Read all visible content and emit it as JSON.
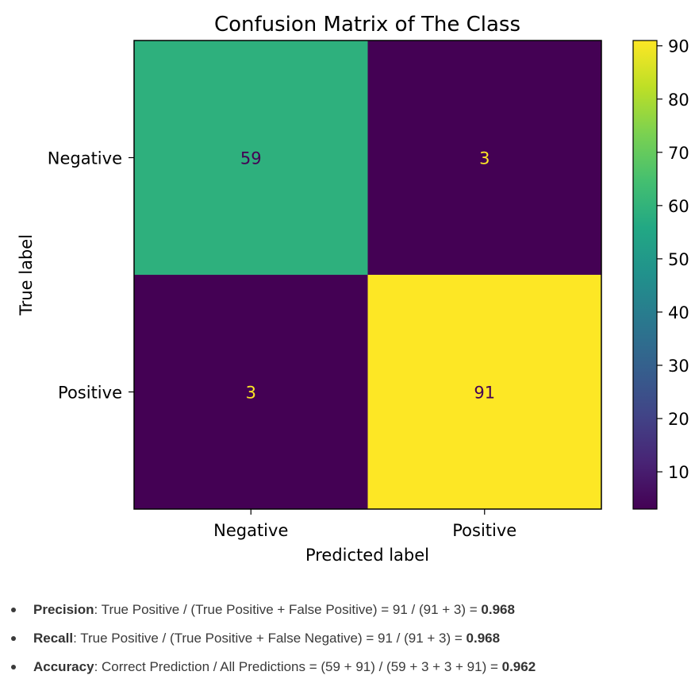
{
  "chart_data": {
    "type": "heatmap",
    "title": "Confusion Matrix of The Class",
    "xlabel": "Predicted label",
    "ylabel": "True label",
    "x_categories": [
      "Negative",
      "Positive"
    ],
    "y_categories": [
      "Negative",
      "Positive"
    ],
    "values": [
      [
        59,
        3
      ],
      [
        3,
        91
      ]
    ],
    "colormap": "viridis",
    "colorbar": {
      "range": [
        3,
        91
      ],
      "ticks": [
        10,
        20,
        30,
        40,
        50,
        60,
        70,
        80,
        90
      ]
    }
  },
  "metrics": [
    {
      "name": "Precision",
      "formula": ": True Positive / (True Positive + False Positive) = 91 / (91 + 3) = ",
      "result": "0.968"
    },
    {
      "name": "Recall",
      "formula": ": True Positive / (True Positive + False Negative) = 91 / (91 + 3) = ",
      "result": "0.968"
    },
    {
      "name": "Accuracy",
      "formula": ": Correct Prediction / All Predictions = (59 + 91) / (59 + 3 + 3 + 91) = ",
      "result": "0.962"
    }
  ]
}
